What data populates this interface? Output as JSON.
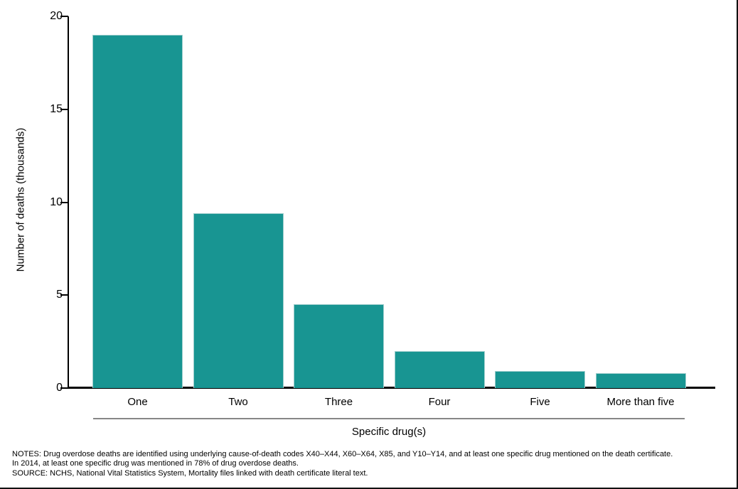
{
  "chart_data": {
    "type": "bar",
    "title": "",
    "categories": [
      "One",
      "Two",
      "Three",
      "Four",
      "Five",
      "More than five"
    ],
    "values": [
      19.0,
      9.4,
      4.5,
      2.0,
      0.9,
      0.8
    ],
    "xlabel": "Specific drug(s)",
    "ylabel": "Number of deaths (thousands)",
    "ylim": [
      0,
      20
    ],
    "yticks": [
      0,
      5,
      10,
      15,
      20
    ],
    "bar_color": "#189592",
    "bar_border_color": "#9fcecd",
    "axis_color": "#000000",
    "category_line_color": "#878787",
    "grid": false,
    "legend": null
  },
  "notes": {
    "lines": [
      "NOTES: Drug overdose deaths are identified using underlying cause-of-death codes X40–X44, X60–X64, X85, and Y10–Y14, and at least one specific drug mentioned on the death certificate.",
      "In 2014, at least one specific drug was mentioned in 78% of drug overdose deaths.",
      "SOURCE: NCHS, National Vital Statistics System, Mortality files linked with death certificate literal text."
    ]
  }
}
